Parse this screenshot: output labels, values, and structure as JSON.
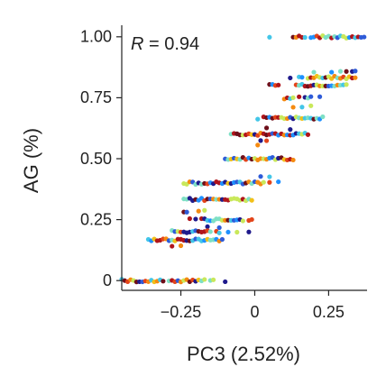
{
  "chart_data": {
    "type": "scatter",
    "xlabel": "PC3 (2.52%)",
    "ylabel": "AG (%)",
    "annotation_prefix": "R",
    "annotation_value": " = 0.94",
    "xlim": [
      -0.45,
      0.38
    ],
    "ylim": [
      -0.04,
      1.04
    ],
    "xticks": [
      -0.25,
      0,
      0.25
    ],
    "xtick_labels": [
      "−0.25",
      "0",
      "0.25"
    ],
    "yticks": [
      0,
      0.25,
      0.5,
      0.75,
      1.0
    ],
    "ytick_labels": [
      "0",
      "0.25",
      "0.50",
      "0.75",
      "1.00"
    ],
    "grid": false,
    "legend": "none",
    "palette": [
      "#1f1a8c",
      "#2e5bd8",
      "#1e90ff",
      "#43c6e8",
      "#7ee0c5",
      "#c9e85a",
      "#f2c018",
      "#f58a10",
      "#e3441a",
      "#b0151b",
      "#6e0f1a"
    ],
    "series": [
      {
        "y": 1.0,
        "x": [
          0.05,
          0.13,
          0.14,
          0.15,
          0.16,
          0.17,
          0.19,
          0.2,
          0.21,
          0.22,
          0.23,
          0.24,
          0.25,
          0.26,
          0.27,
          0.28,
          0.29,
          0.3,
          0.31,
          0.32,
          0.33,
          0.34,
          0.35,
          0.36,
          0.37
        ]
      },
      {
        "y": 0.857,
        "x": [
          0.2,
          0.26,
          0.29,
          0.31,
          0.33,
          0.34
        ]
      },
      {
        "y": 0.833,
        "x": [
          0.12,
          0.15,
          0.16,
          0.18,
          0.19,
          0.2,
          0.21,
          0.22,
          0.23,
          0.24,
          0.25,
          0.26,
          0.27,
          0.28,
          0.29,
          0.3,
          0.31,
          0.32,
          0.33,
          0.34
        ]
      },
      {
        "y": 0.8,
        "x": [
          0.05,
          0.06,
          0.07,
          0.08,
          0.14,
          0.15,
          0.16,
          0.17,
          0.18,
          0.19,
          0.2,
          0.21,
          0.22,
          0.23,
          0.24,
          0.25,
          0.26,
          0.27,
          0.28,
          0.29,
          0.3,
          0.31
        ]
      },
      {
        "y": 0.75,
        "x": [
          0.1,
          0.11,
          0.12,
          0.13,
          0.15,
          0.17,
          0.18,
          0.19,
          0.22
        ]
      },
      {
        "y": 0.714,
        "x": [
          0.13,
          0.16,
          0.19
        ]
      },
      {
        "y": 0.667,
        "x": [
          0.01,
          0.03,
          0.04,
          0.05,
          0.06,
          0.07,
          0.08,
          0.09,
          0.1,
          0.11,
          0.12,
          0.13,
          0.14,
          0.15,
          0.16,
          0.17,
          0.18,
          0.19,
          0.2,
          0.21,
          0.22,
          0.23
        ]
      },
      {
        "y": 0.625,
        "x": [
          0.04,
          0.12
        ]
      },
      {
        "y": 0.6,
        "x": [
          -0.08,
          -0.07,
          -0.06,
          -0.05,
          -0.04,
          -0.03,
          -0.02,
          -0.01,
          0.0,
          0.01,
          0.02,
          0.03,
          0.04,
          0.05,
          0.06,
          0.07,
          0.08,
          0.09,
          0.1,
          0.11,
          0.12,
          0.13,
          0.14,
          0.15,
          0.16,
          0.17,
          0.18
        ]
      },
      {
        "y": 0.571,
        "x": [
          0.02,
          0.04
        ]
      },
      {
        "y": 0.556,
        "x": [
          0.01
        ]
      },
      {
        "y": 0.5,
        "x": [
          -0.1,
          -0.09,
          -0.08,
          -0.07,
          -0.06,
          -0.05,
          -0.04,
          -0.03,
          -0.02,
          -0.01,
          0.0,
          0.01,
          0.02,
          0.03,
          0.04,
          0.05,
          0.06,
          0.07,
          0.08,
          0.09,
          0.1,
          0.11,
          0.12,
          0.13
        ]
      },
      {
        "y": 0.429,
        "x": [
          0.02,
          0.05
        ]
      },
      {
        "y": 0.4,
        "x": [
          -0.24,
          -0.23,
          -0.22,
          -0.21,
          -0.2,
          -0.19,
          -0.18,
          -0.17,
          -0.16,
          -0.15,
          -0.14,
          -0.13,
          -0.12,
          -0.11,
          -0.1,
          -0.09,
          -0.08,
          -0.07,
          -0.06,
          -0.05,
          -0.04,
          -0.03,
          -0.02,
          -0.01,
          0.0,
          0.01,
          0.02,
          0.03,
          0.05,
          0.08
        ]
      },
      {
        "y": 0.333,
        "x": [
          -0.24,
          -0.23,
          -0.22,
          -0.21,
          -0.2,
          -0.19,
          -0.18,
          -0.17,
          -0.16,
          -0.15,
          -0.14,
          -0.13,
          -0.12,
          -0.11,
          -0.1,
          -0.09,
          -0.08,
          -0.07,
          -0.06,
          -0.05,
          -0.04,
          -0.03,
          -0.02,
          -0.01
        ]
      },
      {
        "y": 0.286,
        "x": [
          -0.24,
          -0.23,
          -0.19,
          -0.17
        ]
      },
      {
        "y": 0.25,
        "x": [
          -0.22,
          -0.2,
          -0.18,
          -0.17,
          -0.16,
          -0.15,
          -0.14,
          -0.13,
          -0.12,
          -0.11,
          -0.1,
          -0.09,
          -0.08,
          -0.07,
          -0.06,
          -0.05,
          -0.04,
          -0.02,
          -0.01
        ]
      },
      {
        "y": 0.222,
        "x": [
          -0.16,
          -0.12
        ]
      },
      {
        "y": 0.2,
        "x": [
          -0.28,
          -0.27,
          -0.26,
          -0.25,
          -0.24,
          -0.23,
          -0.22,
          -0.21,
          -0.2,
          -0.19,
          -0.18,
          -0.17,
          -0.16,
          -0.15,
          -0.13,
          -0.12,
          -0.09,
          -0.06,
          -0.02
        ]
      },
      {
        "y": 0.167,
        "x": [
          -0.36,
          -0.35,
          -0.34,
          -0.33,
          -0.32,
          -0.31,
          -0.3,
          -0.29,
          -0.28,
          -0.27,
          -0.26,
          -0.25,
          -0.24,
          -0.23,
          -0.22,
          -0.21,
          -0.2,
          -0.19,
          -0.18,
          -0.17,
          -0.16,
          -0.15,
          -0.14,
          -0.13,
          -0.12,
          -0.11
        ]
      },
      {
        "y": 0.143,
        "x": [
          -0.28,
          -0.25
        ]
      },
      {
        "y": 0.0,
        "x": [
          -0.45,
          -0.44,
          -0.43,
          -0.42,
          -0.41,
          -0.4,
          -0.39,
          -0.38,
          -0.37,
          -0.36,
          -0.35,
          -0.34,
          -0.33,
          -0.32,
          -0.31,
          -0.29,
          -0.28,
          -0.27,
          -0.26,
          -0.25,
          -0.24,
          -0.23,
          -0.22,
          -0.21,
          -0.2,
          -0.19,
          -0.18,
          -0.17,
          -0.15,
          -0.14,
          -0.1
        ]
      }
    ]
  }
}
